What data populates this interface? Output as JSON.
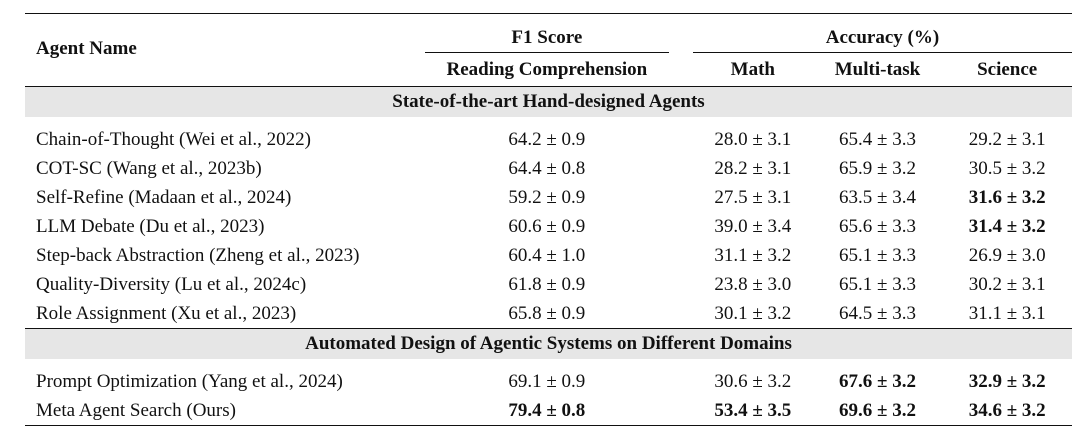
{
  "headers": {
    "agent_name": "Agent Name",
    "f1_group": "F1 Score",
    "accuracy_group": "Accuracy (%)",
    "reading": "Reading Comprehension",
    "math": "Math",
    "multitask": "Multi-task",
    "science": "Science"
  },
  "sections": [
    {
      "title": "State-of-the-art Hand-designed Agents",
      "rows": [
        {
          "name": "Chain-of-Thought (Wei et al., 2022)",
          "reading": "64.2 ± 0.9",
          "math": "28.0 ± 3.1",
          "multitask": "65.4 ± 3.3",
          "science": "29.2 ± 3.1",
          "bold": []
        },
        {
          "name": "COT-SC (Wang et al., 2023b)",
          "reading": "64.4 ± 0.8",
          "math": "28.2 ± 3.1",
          "multitask": "65.9 ± 3.2",
          "science": "30.5 ± 3.2",
          "bold": []
        },
        {
          "name": "Self-Refine (Madaan et al., 2024)",
          "reading": "59.2 ± 0.9",
          "math": "27.5 ± 3.1",
          "multitask": "63.5 ± 3.4",
          "science": "31.6 ± 3.2",
          "bold": [
            "science"
          ]
        },
        {
          "name": "LLM Debate (Du et al., 2023)",
          "reading": "60.6 ± 0.9",
          "math": "39.0 ± 3.4",
          "multitask": "65.6 ± 3.3",
          "science": "31.4 ± 3.2",
          "bold": [
            "science"
          ]
        },
        {
          "name": "Step-back Abstraction (Zheng et al., 2023)",
          "reading": "60.4 ± 1.0",
          "math": "31.1 ± 3.2",
          "multitask": "65.1 ± 3.3",
          "science": "26.9 ± 3.0",
          "bold": []
        },
        {
          "name": "Quality-Diversity (Lu et al., 2024c)",
          "reading": "61.8 ± 0.9",
          "math": "23.8 ± 3.0",
          "multitask": "65.1 ± 3.3",
          "science": "30.2 ± 3.1",
          "bold": []
        },
        {
          "name": "Role Assignment (Xu et al., 2023)",
          "reading": "65.8 ± 0.9",
          "math": "30.1 ± 3.2",
          "multitask": "64.5 ± 3.3",
          "science": "31.1 ± 3.1",
          "bold": []
        }
      ]
    },
    {
      "title": "Automated Design of Agentic Systems on Different Domains",
      "rows": [
        {
          "name": "Prompt Optimization (Yang et al., 2024)",
          "reading": "69.1 ± 0.9",
          "math": "30.6 ± 3.2",
          "multitask": "67.6 ± 3.2",
          "science": "32.9 ± 3.2",
          "bold": [
            "multitask",
            "science"
          ]
        },
        {
          "name": "Meta Agent Search (Ours)",
          "reading": "79.4 ± 0.8",
          "math": "53.4 ± 3.5",
          "multitask": "69.6 ± 3.2",
          "science": "34.6 ± 3.2",
          "bold": [
            "reading",
            "math",
            "multitask",
            "science"
          ]
        }
      ]
    }
  ]
}
